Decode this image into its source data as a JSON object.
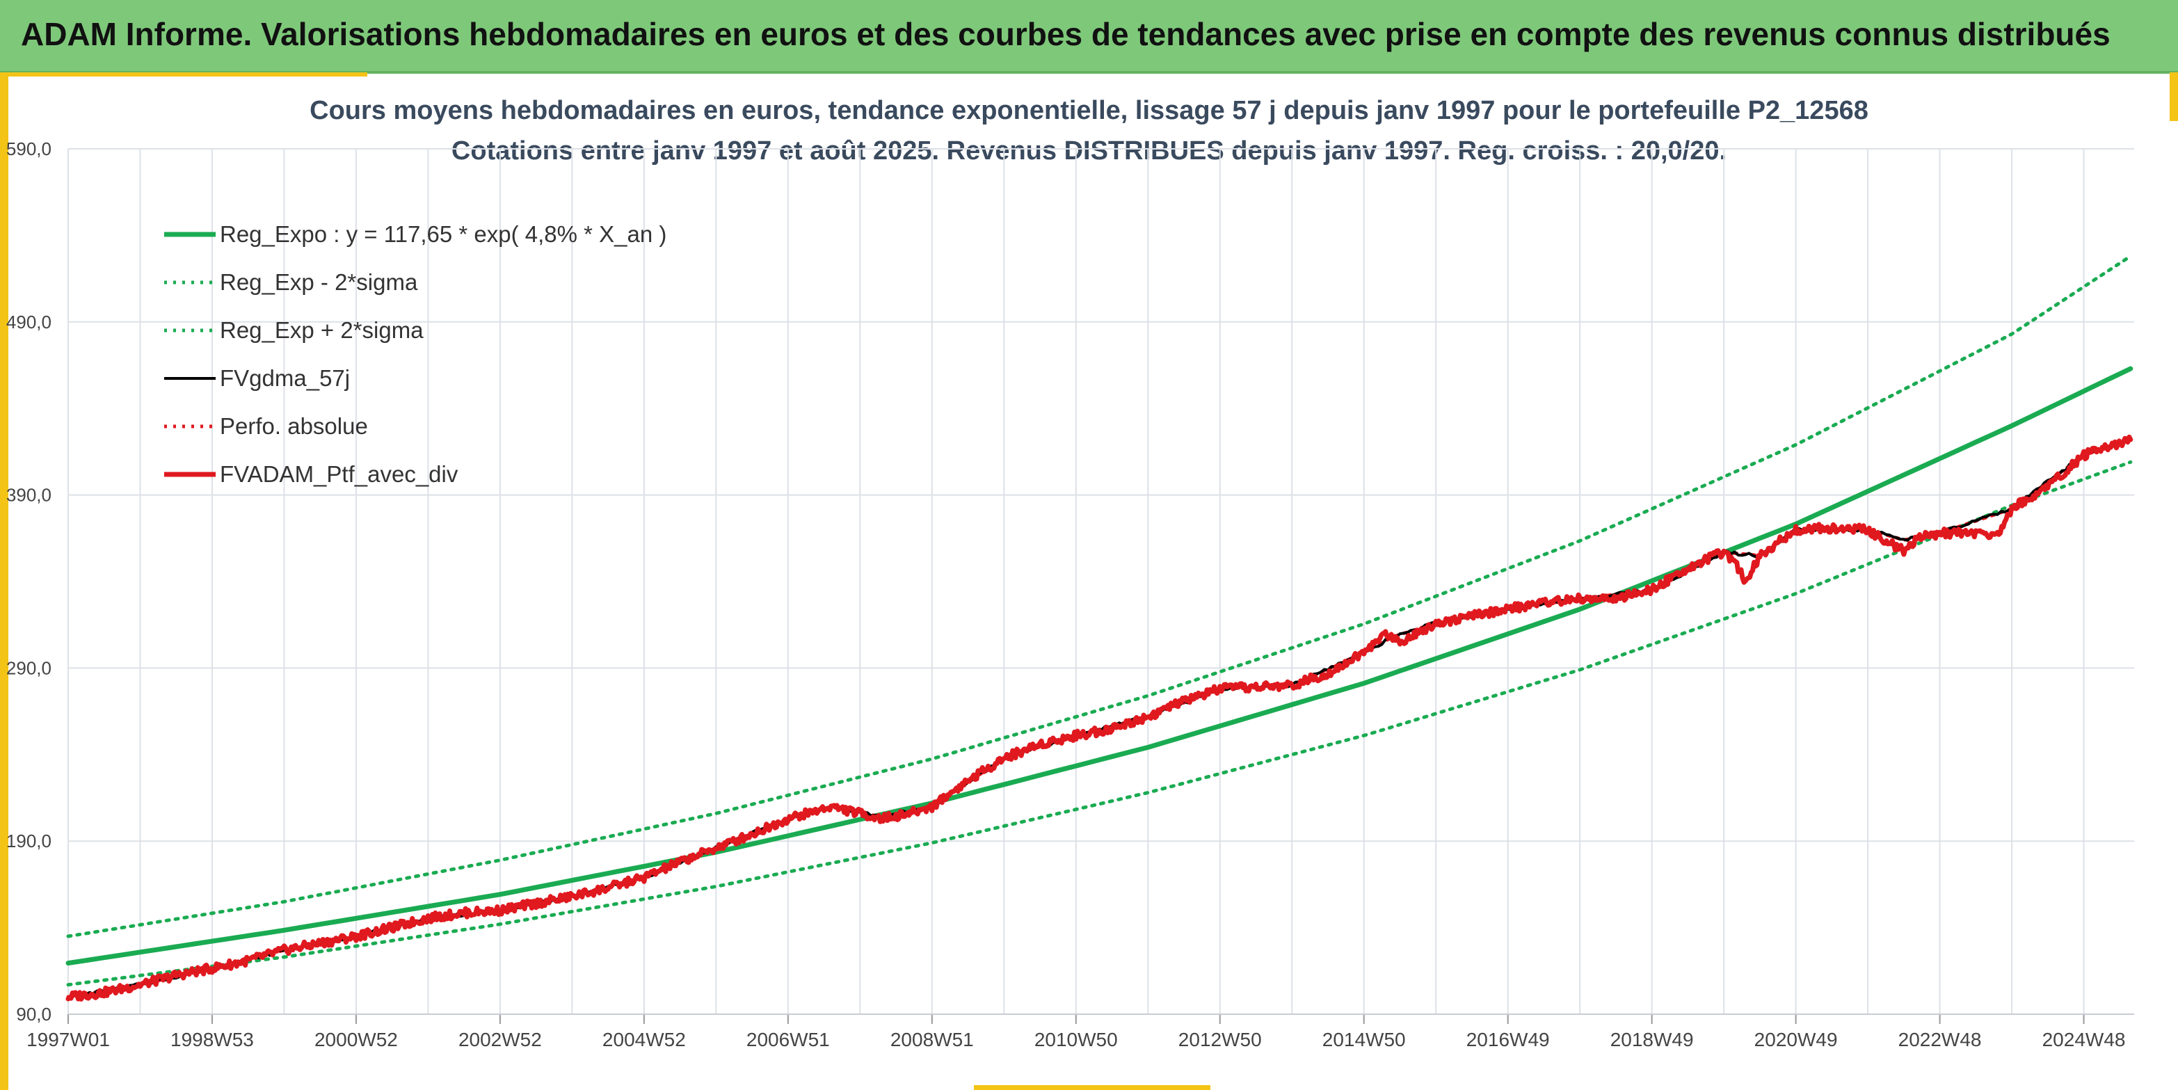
{
  "banner": {
    "title": "ADAM Informe. Valorisations hebdomadaires en euros et des courbes de tendances avec prise en compte des revenus connus distribués"
  },
  "colors": {
    "banner_bg": "#7ec87a",
    "accent": "#f3c316",
    "trend": "#1aab52",
    "smooth": "#000000",
    "perf": "#e0191f",
    "portfolio": "#e0191f",
    "grid": "#dde1e6",
    "axis_text": "#444444"
  },
  "chart_data": {
    "type": "line",
    "title": "Cours moyens hebdomadaires en euros, tendance exponentielle, lissage 57 j depuis janv 1997 pour le portefeuille P2_12568",
    "subtitle": "Cotations entre janv 1997 et août 2025. Revenus DISTRIBUES depuis janv 1997. Reg. croiss. : 20,0/20.",
    "xlabel": "",
    "ylabel": "",
    "x_range": [
      "1997W01",
      "2025W35"
    ],
    "x_ticks": [
      {
        "label": "1997W01",
        "t": 1997.0
      },
      {
        "label": "1998W53",
        "t": 1999.0
      },
      {
        "label": "2000W52",
        "t": 2001.0
      },
      {
        "label": "2002W52",
        "t": 2003.0
      },
      {
        "label": "2004W52",
        "t": 2005.0
      },
      {
        "label": "2006W51",
        "t": 2007.0
      },
      {
        "label": "2008W51",
        "t": 2009.0
      },
      {
        "label": "2010W50",
        "t": 2011.0
      },
      {
        "label": "2012W50",
        "t": 2013.0
      },
      {
        "label": "2014W50",
        "t": 2015.0
      },
      {
        "label": "2016W49",
        "t": 2017.0
      },
      {
        "label": "2018W49",
        "t": 2019.0
      },
      {
        "label": "2020W49",
        "t": 2021.0
      },
      {
        "label": "2022W48",
        "t": 2023.0
      },
      {
        "label": "2024W48",
        "t": 2025.0
      }
    ],
    "ylim": [
      90.0,
      590.0
    ],
    "y_ticks": [
      "90,0",
      "190,0",
      "290,0",
      "390,0",
      "490,0",
      "590,0"
    ],
    "grid": true,
    "legend_position": "top-left",
    "series": [
      {
        "name": "Reg_Expo : y = 117,65 * exp( 4,8% * X_an )",
        "style": "solid-thick",
        "color": "#1aab52",
        "points": [
          [
            1997.0,
            119.5
          ],
          [
            2000.0,
            138.5
          ],
          [
            2003.0,
            159.2
          ],
          [
            2006.0,
            183.6
          ],
          [
            2009.0,
            212.0
          ],
          [
            2012.0,
            244.2
          ],
          [
            2015.0,
            281.2
          ],
          [
            2018.0,
            324.0
          ],
          [
            2021.0,
            373.2
          ],
          [
            2024.0,
            430.0
          ],
          [
            2025.65,
            463.0
          ]
        ]
      },
      {
        "name": "Reg_Exp - 2*sigma",
        "style": "dotted",
        "color": "#1aab52",
        "points": [
          [
            1997.0,
            107.0
          ],
          [
            2000.0,
            123.0
          ],
          [
            2003.0,
            142.0
          ],
          [
            2006.0,
            163.8
          ],
          [
            2009.0,
            189.0
          ],
          [
            2012.0,
            218.0
          ],
          [
            2015.0,
            251.0
          ],
          [
            2018.0,
            289.0
          ],
          [
            2021.0,
            333.0
          ],
          [
            2024.0,
            384.0
          ],
          [
            2025.65,
            409.0
          ]
        ]
      },
      {
        "name": "Reg_Exp + 2*sigma",
        "style": "dotted",
        "color": "#1aab52",
        "points": [
          [
            1997.0,
            135.0
          ],
          [
            2000.0,
            155.0
          ],
          [
            2003.0,
            179.0
          ],
          [
            2006.0,
            206.0
          ],
          [
            2009.0,
            237.5
          ],
          [
            2012.0,
            274.0
          ],
          [
            2015.0,
            315.5
          ],
          [
            2018.0,
            363.5
          ],
          [
            2021.0,
            419.0
          ],
          [
            2024.0,
            483.0
          ],
          [
            2025.65,
            528.0
          ]
        ]
      },
      {
        "name": "FVgdma_57j",
        "style": "solid-thin",
        "color": "#000000",
        "points": [
          [
            1997.0,
            100.0
          ],
          [
            1998.0,
            107.0
          ],
          [
            1999.0,
            116.5
          ],
          [
            2000.0,
            127.0
          ],
          [
            2001.0,
            135.0
          ],
          [
            2002.0,
            145.5
          ],
          [
            2003.0,
            150.0
          ],
          [
            2004.0,
            158.0
          ],
          [
            2005.0,
            169.0
          ],
          [
            2006.0,
            186.0
          ],
          [
            2007.0,
            203.0
          ],
          [
            2007.6,
            210.0
          ],
          [
            2008.3,
            204.0
          ],
          [
            2009.0,
            210.0
          ],
          [
            2010.0,
            238.0
          ],
          [
            2011.0,
            251.0
          ],
          [
            2012.0,
            262.0
          ],
          [
            2013.0,
            278.0
          ],
          [
            2014.0,
            280.0
          ],
          [
            2015.0,
            299.0
          ],
          [
            2015.4,
            308.0
          ],
          [
            2016.0,
            316.0
          ],
          [
            2017.0,
            324.0
          ],
          [
            2018.0,
            330.0
          ],
          [
            2019.0,
            335.0
          ],
          [
            2020.0,
            357.0
          ],
          [
            2020.5,
            355.0
          ],
          [
            2021.0,
            370.0
          ],
          [
            2022.0,
            370.0
          ],
          [
            2022.5,
            364.0
          ],
          [
            2023.0,
            368.0
          ],
          [
            2024.0,
            382.0
          ],
          [
            2025.0,
            413.0
          ],
          [
            2025.65,
            422.0
          ]
        ]
      },
      {
        "name": "Perfo. absolue",
        "style": "dotted",
        "color": "#e0191f",
        "points": [
          [
            1997.0,
            100.0
          ],
          [
            1998.0,
            107.0
          ],
          [
            1999.0,
            116.5
          ],
          [
            2000.0,
            127.0
          ],
          [
            2001.0,
            135.0
          ],
          [
            2002.0,
            145.5
          ],
          [
            2003.0,
            150.0
          ],
          [
            2004.0,
            158.0
          ],
          [
            2005.0,
            169.0
          ],
          [
            2006.0,
            186.0
          ],
          [
            2007.0,
            203.0
          ],
          [
            2007.6,
            210.0
          ],
          [
            2008.3,
            204.0
          ],
          [
            2009.0,
            210.0
          ],
          [
            2010.0,
            238.0
          ],
          [
            2011.0,
            251.0
          ],
          [
            2012.0,
            262.0
          ],
          [
            2013.0,
            278.0
          ],
          [
            2014.0,
            280.0
          ],
          [
            2015.0,
            299.0
          ],
          [
            2015.4,
            308.0
          ],
          [
            2016.0,
            316.0
          ],
          [
            2017.0,
            324.0
          ],
          [
            2018.0,
            330.0
          ],
          [
            2019.0,
            335.0
          ],
          [
            2020.0,
            357.0
          ],
          [
            2020.5,
            355.0
          ],
          [
            2021.0,
            370.0
          ],
          [
            2022.0,
            370.0
          ],
          [
            2022.5,
            364.0
          ],
          [
            2023.0,
            368.0
          ],
          [
            2024.0,
            382.0
          ],
          [
            2025.0,
            413.0
          ],
          [
            2025.65,
            422.0
          ]
        ]
      },
      {
        "name": "FVADAM_Ptf_avec_div",
        "style": "solid-thick",
        "color": "#e0191f",
        "points": [
          [
            1997.0,
            100.0
          ],
          [
            1997.5,
            102.5
          ],
          [
            1998.0,
            107.0
          ],
          [
            1998.5,
            112.5
          ],
          [
            1999.0,
            116.5
          ],
          [
            1999.5,
            121.0
          ],
          [
            2000.0,
            127.0
          ],
          [
            2000.5,
            131.0
          ],
          [
            2001.0,
            135.0
          ],
          [
            2001.5,
            140.0
          ],
          [
            2002.0,
            145.5
          ],
          [
            2002.5,
            148.5
          ],
          [
            2003.0,
            150.0
          ],
          [
            2003.5,
            154.0
          ],
          [
            2004.0,
            158.0
          ],
          [
            2004.5,
            163.0
          ],
          [
            2005.0,
            169.0
          ],
          [
            2005.5,
            178.0
          ],
          [
            2006.0,
            186.0
          ],
          [
            2006.5,
            194.0
          ],
          [
            2007.0,
            203.0
          ],
          [
            2007.6,
            210.0
          ],
          [
            2008.0,
            206.0
          ],
          [
            2008.3,
            203.0
          ],
          [
            2008.7,
            206.0
          ],
          [
            2009.0,
            210.0
          ],
          [
            2009.5,
            225.0
          ],
          [
            2010.0,
            238.0
          ],
          [
            2010.5,
            246.0
          ],
          [
            2011.0,
            251.0
          ],
          [
            2011.5,
            255.0
          ],
          [
            2012.0,
            262.0
          ],
          [
            2012.5,
            271.0
          ],
          [
            2013.0,
            278.0
          ],
          [
            2013.5,
            279.0
          ],
          [
            2014.0,
            280.0
          ],
          [
            2014.5,
            287.0
          ],
          [
            2015.0,
            299.0
          ],
          [
            2015.3,
            310.0
          ],
          [
            2015.5,
            305.0
          ],
          [
            2016.0,
            316.0
          ],
          [
            2016.5,
            320.0
          ],
          [
            2017.0,
            324.0
          ],
          [
            2017.5,
            328.0
          ],
          [
            2018.0,
            330.0
          ],
          [
            2018.5,
            330.0
          ],
          [
            2019.0,
            335.0
          ],
          [
            2019.5,
            348.0
          ],
          [
            2020.0,
            357.0
          ],
          [
            2020.2,
            348.0
          ],
          [
            2020.3,
            340.0
          ],
          [
            2020.5,
            355.0
          ],
          [
            2021.0,
            370.0
          ],
          [
            2021.5,
            371.0
          ],
          [
            2022.0,
            370.0
          ],
          [
            2022.3,
            362.0
          ],
          [
            2022.5,
            358.0
          ],
          [
            2022.7,
            365.0
          ],
          [
            2023.0,
            368.0
          ],
          [
            2023.5,
            368.0
          ],
          [
            2023.8,
            367.0
          ],
          [
            2024.0,
            382.0
          ],
          [
            2024.5,
            395.0
          ],
          [
            2025.0,
            413.0
          ],
          [
            2025.65,
            422.0
          ]
        ]
      }
    ]
  }
}
